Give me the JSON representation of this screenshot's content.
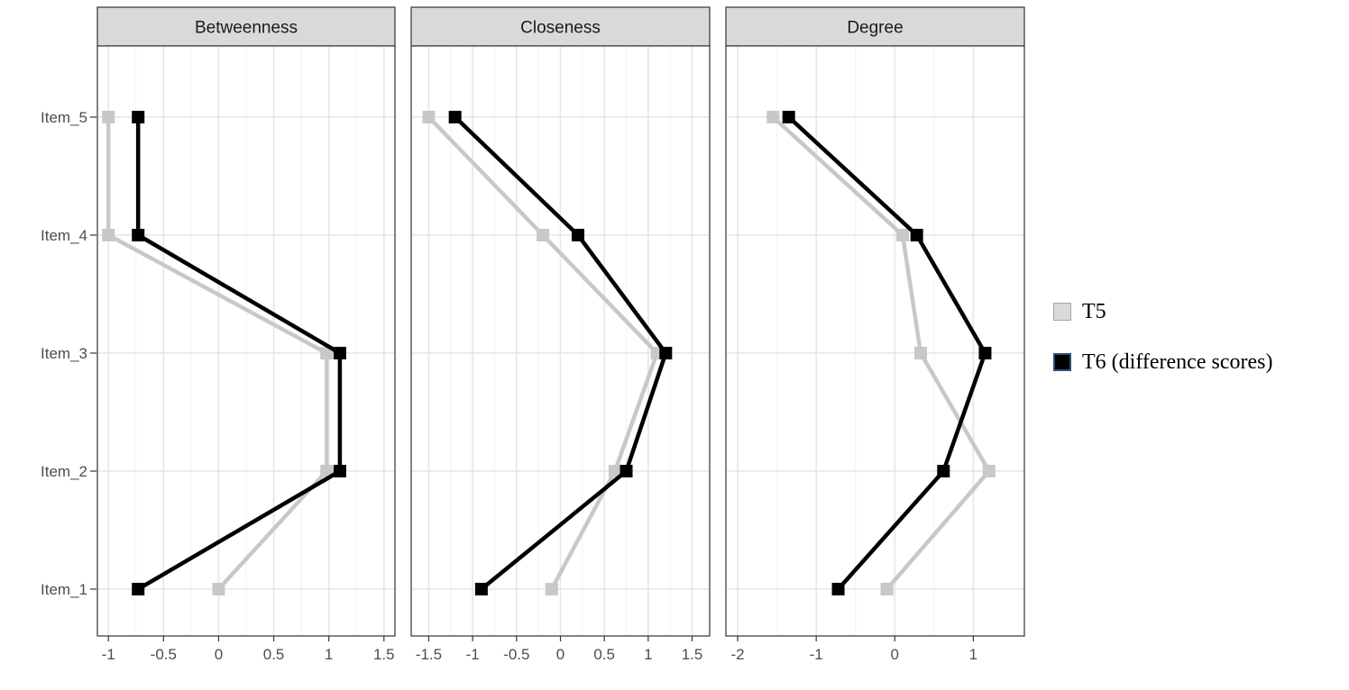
{
  "chart_data": {
    "type": "line",
    "facets": [
      "Betweenness",
      "Closeness",
      "Degree"
    ],
    "items": [
      "Item_1",
      "Item_2",
      "Item_3",
      "Item_4",
      "Item_5"
    ],
    "panels": [
      {
        "title": "Betweenness",
        "xlim": [
          -1.1,
          1.6
        ],
        "xticks": [
          -1,
          -0.5,
          0,
          0.5,
          1,
          1.5
        ],
        "xtick_labels": [
          "-1",
          "-0.5",
          "0",
          "0.5",
          "1",
          "1.5"
        ],
        "series": [
          {
            "name": "T5",
            "values": [
              0,
              0.98,
              0.98,
              -1,
              -1
            ]
          },
          {
            "name": "T6 (difference scores)",
            "values": [
              -0.73,
              1.1,
              1.1,
              -0.73,
              -0.73
            ]
          }
        ]
      },
      {
        "title": "Closeness",
        "xlim": [
          -1.7,
          1.7
        ],
        "xticks": [
          -1.5,
          -1,
          -0.5,
          0,
          0.5,
          1,
          1.5
        ],
        "xtick_labels": [
          "-1.5",
          "-1",
          "-0.5",
          "0",
          "0.5",
          "1",
          "1.5"
        ],
        "series": [
          {
            "name": "T5",
            "values": [
              -0.1,
              0.62,
              1.1,
              -0.2,
              -1.5
            ]
          },
          {
            "name": "T6 (difference scores)",
            "values": [
              -0.9,
              0.75,
              1.2,
              0.2,
              -1.2
            ]
          }
        ]
      },
      {
        "title": "Degree",
        "xlim": [
          -2.15,
          1.65
        ],
        "xticks": [
          -2,
          -1,
          0,
          1
        ],
        "xtick_labels": [
          "-2",
          "-1",
          "0",
          "1"
        ],
        "series": [
          {
            "name": "T5",
            "values": [
              -0.1,
              1.2,
              0.33,
              0.1,
              -1.55
            ]
          },
          {
            "name": "T6 (difference scores)",
            "values": [
              -0.72,
              0.62,
              1.15,
              0.28,
              -1.35
            ]
          }
        ]
      }
    ],
    "legend": [
      {
        "name": "T5",
        "label": "T5",
        "color": "#c8c8c8",
        "swatch": "#d9d9d9"
      },
      {
        "name": "T6 (difference scores)",
        "label": "T6 (difference scores)",
        "color": "#000000",
        "swatch": "#000000"
      }
    ],
    "grid": true,
    "legend_position": "right"
  }
}
